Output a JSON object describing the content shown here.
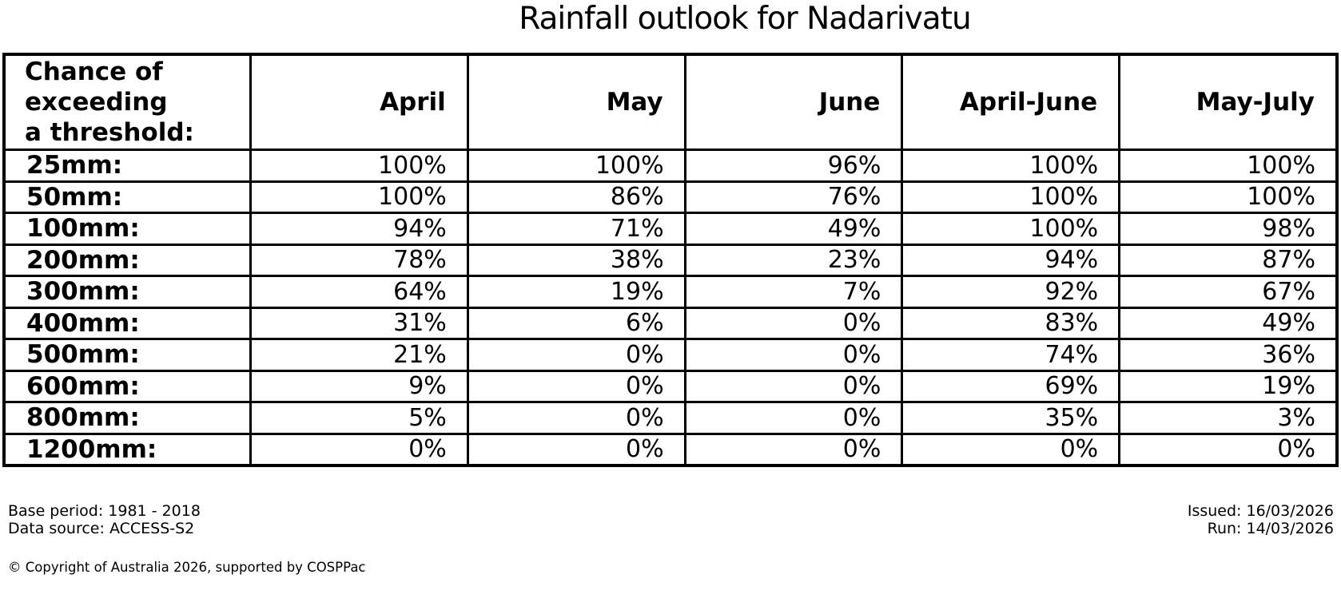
{
  "title": "Rainfall outlook for Nadarivatu",
  "table": {
    "corner_header": "Chance of\nexceeding\na threshold:",
    "columns": [
      "April",
      "May",
      "June",
      "April-June",
      "May-July"
    ],
    "rows": [
      {
        "label": "25mm:",
        "values": [
          "100%",
          "100%",
          "96%",
          "100%",
          "100%"
        ]
      },
      {
        "label": "50mm:",
        "values": [
          "100%",
          "86%",
          "76%",
          "100%",
          "100%"
        ]
      },
      {
        "label": "100mm:",
        "values": [
          "94%",
          "71%",
          "49%",
          "100%",
          "98%"
        ]
      },
      {
        "label": "200mm:",
        "values": [
          "78%",
          "38%",
          "23%",
          "94%",
          "87%"
        ]
      },
      {
        "label": "300mm:",
        "values": [
          "64%",
          "19%",
          "7%",
          "92%",
          "67%"
        ]
      },
      {
        "label": "400mm:",
        "values": [
          "31%",
          "6%",
          "0%",
          "83%",
          "49%"
        ]
      },
      {
        "label": "500mm:",
        "values": [
          "21%",
          "0%",
          "0%",
          "74%",
          "36%"
        ]
      },
      {
        "label": "600mm:",
        "values": [
          "9%",
          "0%",
          "0%",
          "69%",
          "19%"
        ]
      },
      {
        "label": "800mm:",
        "values": [
          "5%",
          "0%",
          "0%",
          "35%",
          "3%"
        ]
      },
      {
        "label": "1200mm:",
        "values": [
          "0%",
          "0%",
          "0%",
          "0%",
          "0%"
        ]
      }
    ]
  },
  "chart_data": {
    "type": "table",
    "title": "Rainfall outlook for Nadarivatu",
    "row_axis_label": "Chance of exceeding a threshold:",
    "thresholds_mm": [
      25,
      50,
      100,
      200,
      300,
      400,
      500,
      600,
      800,
      1200
    ],
    "columns": [
      "April",
      "May",
      "June",
      "April-June",
      "May-July"
    ],
    "series": [
      {
        "name": "April",
        "values": [
          100,
          100,
          94,
          78,
          64,
          31,
          21,
          9,
          5,
          0
        ]
      },
      {
        "name": "May",
        "values": [
          100,
          86,
          71,
          38,
          19,
          6,
          0,
          0,
          0,
          0
        ]
      },
      {
        "name": "June",
        "values": [
          96,
          76,
          49,
          23,
          7,
          0,
          0,
          0,
          0,
          0
        ]
      },
      {
        "name": "April-June",
        "values": [
          100,
          100,
          100,
          94,
          92,
          83,
          74,
          69,
          35,
          0
        ]
      },
      {
        "name": "May-July",
        "values": [
          100,
          100,
          98,
          87,
          67,
          49,
          36,
          19,
          3,
          0
        ]
      }
    ],
    "units": "percent"
  },
  "footer": {
    "base_period": "Base period: 1981 - 2018",
    "data_source": "Data source: ACCESS-S2",
    "issued": "Issued: 16/03/2026",
    "run": "Run: 14/03/2026",
    "copyright": "© Copyright of Australia 2026, supported by COSPPac"
  },
  "colors": {
    "text": "#000000",
    "background": "#ffffff",
    "border": "#000000"
  }
}
